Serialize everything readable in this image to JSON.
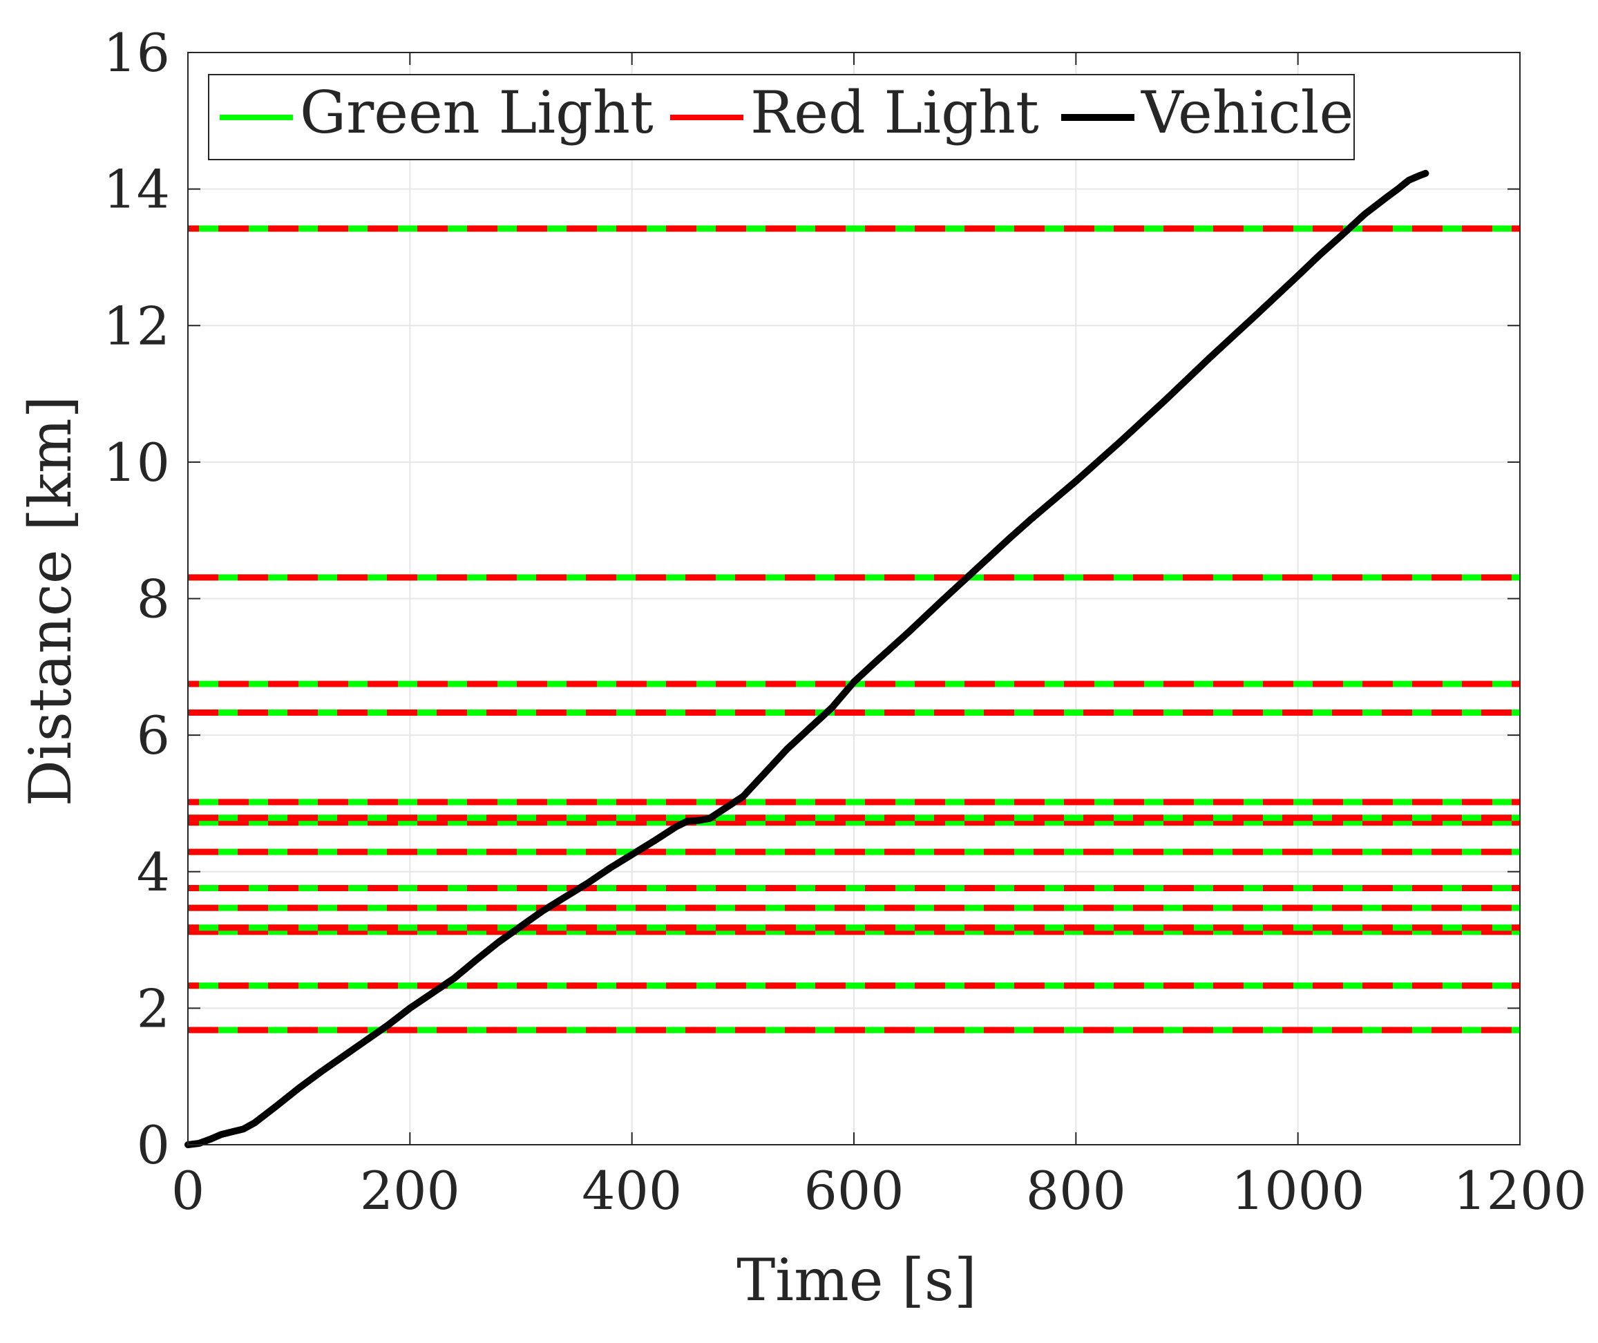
{
  "chart_data": {
    "type": "line",
    "title": "",
    "xlabel": "Time [s]",
    "ylabel": "Distance [km]",
    "xlim": [
      0,
      1200
    ],
    "ylim": [
      0,
      16
    ],
    "xticks": [
      0,
      200,
      400,
      600,
      800,
      1000,
      1200
    ],
    "yticks": [
      0,
      2,
      4,
      6,
      8,
      10,
      12,
      14,
      16
    ],
    "xtick_labels": [
      "0",
      "200",
      "400",
      "600",
      "800",
      "1000",
      "1200"
    ],
    "ytick_labels": [
      "0",
      "2",
      "4",
      "6",
      "8",
      "10",
      "12",
      "14",
      "16"
    ],
    "grid": true,
    "legend_position": "top",
    "legend": [
      {
        "label": "Green Light",
        "color": "#00ff00"
      },
      {
        "label": "Red Light",
        "color": "#ff0000"
      },
      {
        "label": "Vehicle",
        "color": "#000000"
      }
    ],
    "colors": {
      "green_light": "#00ff00",
      "red_light": "#ff0000",
      "vehicle": "#000000"
    },
    "traffic_light_distances": [
      1.68,
      2.33,
      3.12,
      3.18,
      3.47,
      3.76,
      4.29,
      4.72,
      4.79,
      5.02,
      6.33,
      6.75,
      8.31,
      13.42
    ],
    "series": [
      {
        "name": "Vehicle",
        "x": [
          0,
          10,
          20,
          30,
          40,
          50,
          60,
          80,
          100,
          120,
          150,
          180,
          200,
          220,
          240,
          260,
          280,
          300,
          320,
          340,
          360,
          380,
          400,
          420,
          440,
          450,
          460,
          470,
          500,
          520,
          540,
          560,
          570,
          580,
          600,
          620,
          650,
          680,
          700,
          720,
          740,
          760,
          800,
          840,
          880,
          920,
          960,
          1000,
          1020,
          1040,
          1060,
          1080,
          1090,
          1100,
          1110,
          1115
        ],
        "y": [
          0.0,
          0.02,
          0.08,
          0.15,
          0.19,
          0.23,
          0.32,
          0.57,
          0.83,
          1.07,
          1.41,
          1.75,
          2.0,
          2.22,
          2.44,
          2.71,
          2.97,
          3.2,
          3.43,
          3.63,
          3.83,
          4.05,
          4.25,
          4.45,
          4.66,
          4.74,
          4.75,
          4.78,
          5.1,
          5.45,
          5.8,
          6.1,
          6.25,
          6.4,
          6.78,
          7.08,
          7.52,
          7.98,
          8.28,
          8.58,
          8.88,
          9.17,
          9.72,
          10.3,
          10.9,
          11.52,
          12.12,
          12.73,
          13.04,
          13.33,
          13.63,
          13.88,
          14.0,
          14.13,
          14.2,
          14.23
        ]
      }
    ]
  }
}
